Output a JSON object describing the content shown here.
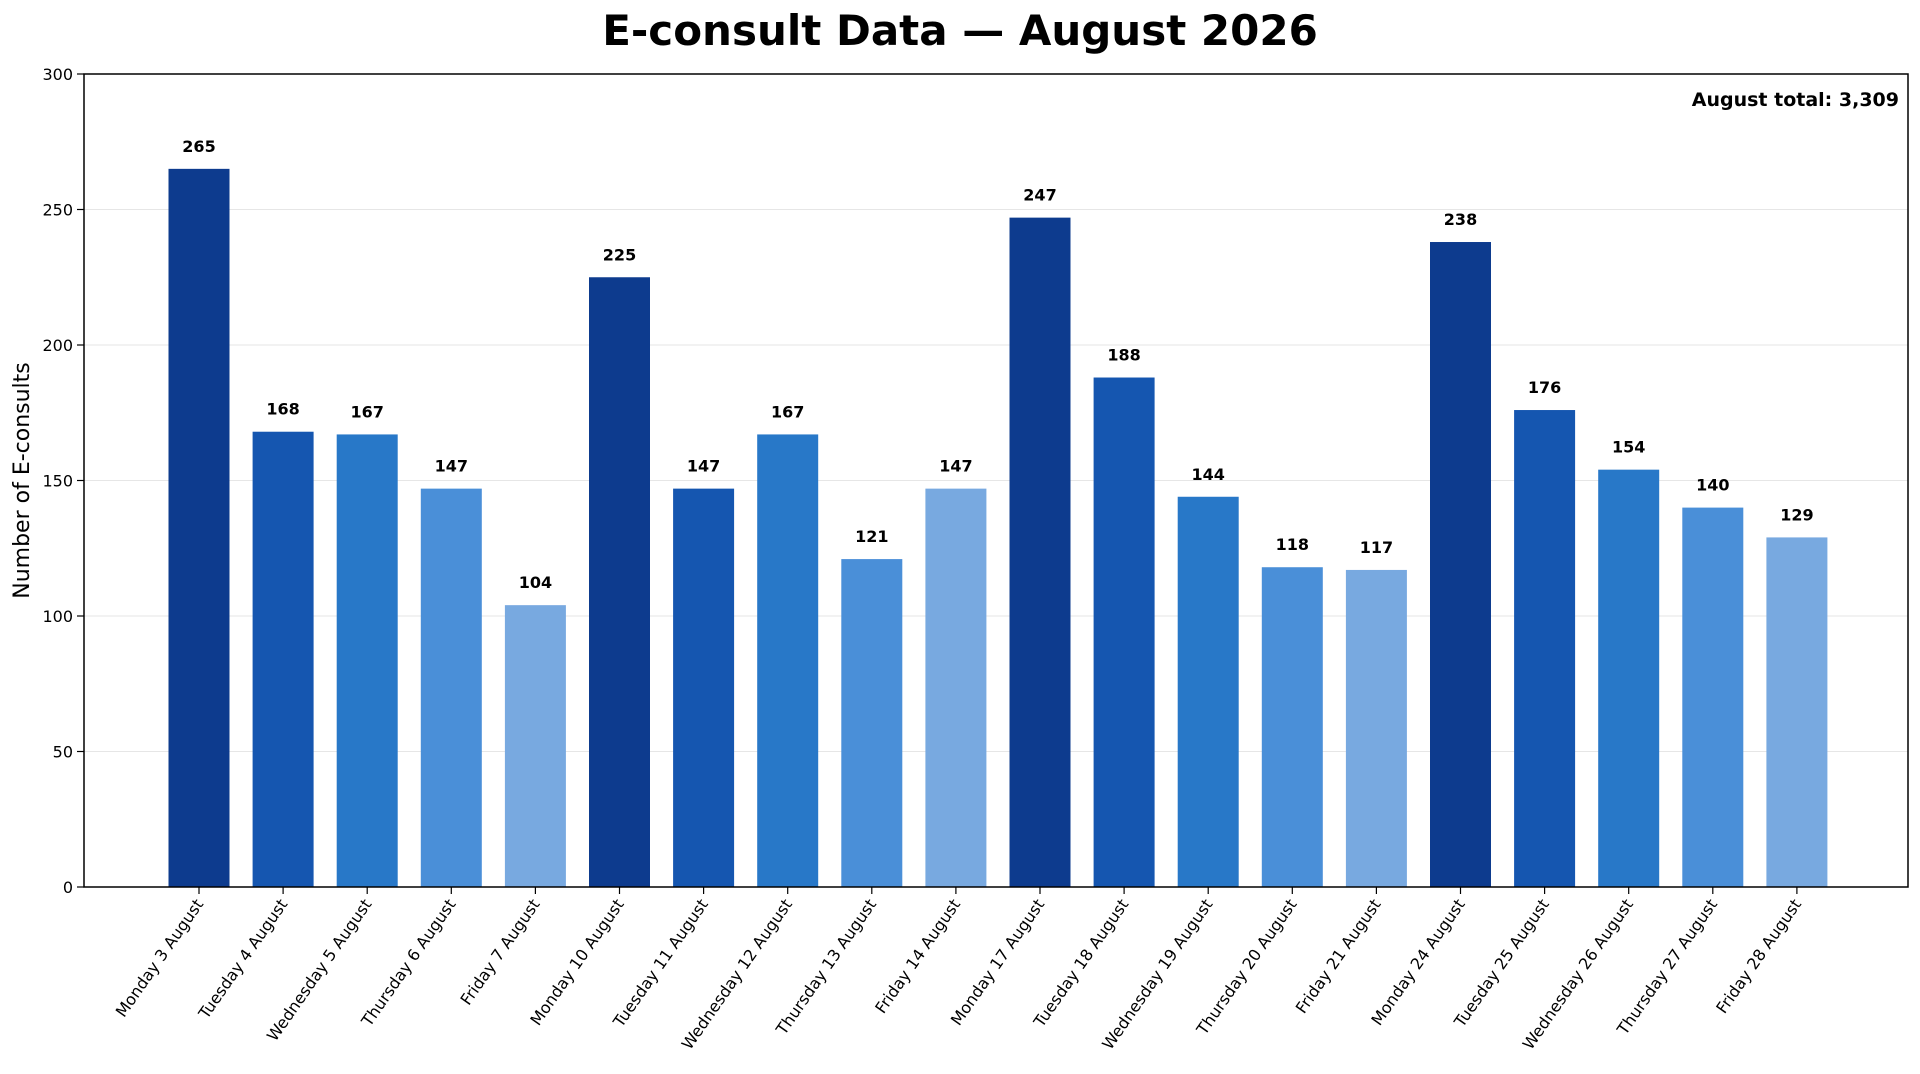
{
  "chart_data": {
    "type": "bar",
    "title": "E-consult Data — August 2026",
    "xlabel": "",
    "ylabel": "Number of E-consults",
    "ylim": [
      0,
      300
    ],
    "yticks": [
      0,
      50,
      100,
      150,
      200,
      250,
      300
    ],
    "grid": "horizontal",
    "annotation": "August total: 3,309",
    "annotation_position": "top-right",
    "categories": [
      "Monday 3 August",
      "Tuesday 4 August",
      "Wednesday 5 August",
      "Thursday 6 August",
      "Friday 7 August",
      "Monday 10 August",
      "Tuesday 11 August",
      "Wednesday 12 August",
      "Thursday 13 August",
      "Friday 14 August",
      "Monday 17 August",
      "Tuesday 18 August",
      "Wednesday 19 August",
      "Thursday 20 August",
      "Friday 21 August",
      "Monday 24 August",
      "Tuesday 25 August",
      "Wednesday 26 August",
      "Thursday 27 August",
      "Friday 28 August"
    ],
    "values": [
      265,
      168,
      167,
      147,
      104,
      225,
      147,
      167,
      121,
      147,
      247,
      188,
      144,
      118,
      117,
      238,
      176,
      154,
      140,
      129
    ],
    "weekday_colors": {
      "Monday": "#0d3b8e",
      "Tuesday": "#1556b0",
      "Wednesday": "#2878c8",
      "Thursday": "#4a8fd8",
      "Friday": "#78a9e0"
    }
  }
}
